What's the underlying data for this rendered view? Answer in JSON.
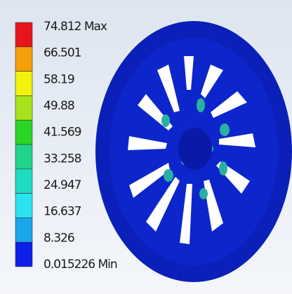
{
  "legend": {
    "labels": [
      "74.812 Max",
      "66.501",
      "58.19",
      "49.88",
      "41.569",
      "33.258",
      "24.947",
      "16.637",
      "8.326",
      "0.015226 Min"
    ],
    "colors": [
      "#e8141c",
      "#f5a00a",
      "#f2f20c",
      "#a8e21a",
      "#2ad624",
      "#22d48a",
      "#1edcc2",
      "#28e4f0",
      "#1aa6ea",
      "#0c1ee8"
    ]
  }
}
